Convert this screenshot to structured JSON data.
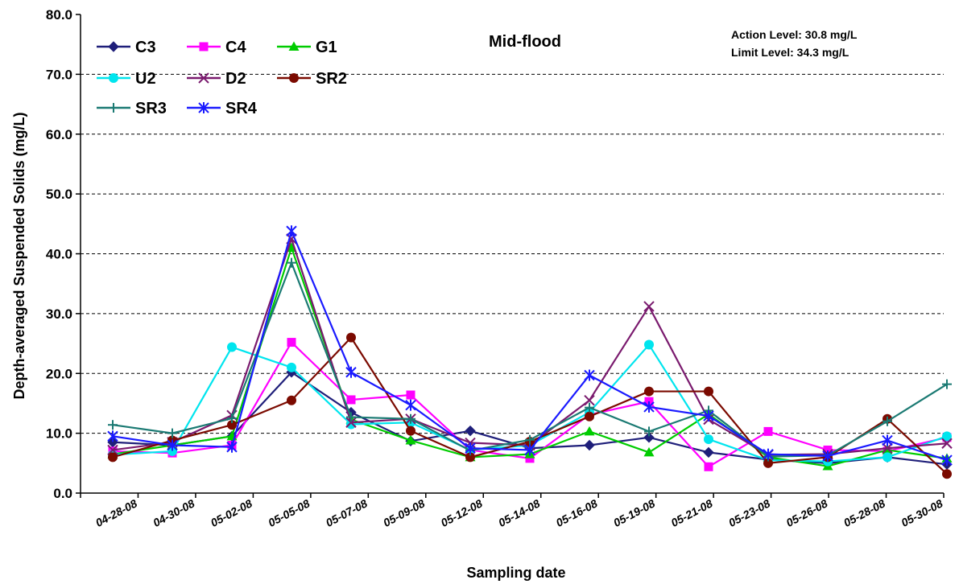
{
  "chart_data": {
    "type": "line",
    "xlabel": "Sampling date",
    "ylabel": "Depth-averaged Suspended Solids (mg/L)",
    "ylim": [
      0,
      80
    ],
    "yticks": [
      "0.0",
      "10.0",
      "20.0",
      "30.0",
      "40.0",
      "50.0",
      "60.0",
      "70.0",
      "80.0"
    ],
    "xtick_labels": [
      "04-28-08",
      "04-30-08",
      "05-02-08",
      "05-05-08",
      "05-07-08",
      "05-09-08",
      "05-12-08",
      "05-14-08",
      "05-16-08",
      "05-19-08",
      "05-21-08",
      "05-23-08",
      "05-26-08",
      "05-28-08",
      "05-30-08"
    ],
    "grid": "horizontal-dashed",
    "legend": "top-left",
    "annotations": {
      "title": "Mid-flood",
      "action_level": "Action Level: 30.8 mg/L",
      "limit_level": "Limit Level: 34.3 mg/L"
    },
    "series": [
      {
        "name": "C3",
        "color": "#1f1f7a",
        "marker": "diamond",
        "values": [
          8.5,
          8.0,
          9.5,
          20.2,
          13.5,
          8.7,
          10.4,
          7.5,
          8.0,
          9.3,
          6.8,
          5.6,
          5.0,
          6.0,
          4.8
        ]
      },
      {
        "name": "C4",
        "color": "#ff00ff",
        "marker": "square",
        "values": [
          7.0,
          6.7,
          8.0,
          25.2,
          15.6,
          16.4,
          7.2,
          5.8,
          13.1,
          15.3,
          4.4,
          10.3,
          7.2,
          7.0,
          9.3
        ]
      },
      {
        "name": "G1",
        "color": "#00cc00",
        "marker": "triangle",
        "values": [
          6.5,
          8.0,
          9.5,
          41.0,
          12.3,
          8.8,
          6.0,
          6.5,
          10.3,
          6.8,
          13.2,
          6.0,
          4.5,
          7.2,
          5.8
        ]
      },
      {
        "name": "U2",
        "color": "#00e5ee",
        "marker": "circle",
        "values": [
          6.4,
          7.0,
          24.4,
          21.0,
          11.5,
          11.8,
          7.2,
          8.0,
          13.5,
          24.8,
          9.0,
          5.5,
          5.3,
          6.0,
          9.5
        ]
      },
      {
        "name": "D2",
        "color": "#7a1a6e",
        "marker": "star",
        "values": [
          7.2,
          8.5,
          13.0,
          42.5,
          11.8,
          12.4,
          8.4,
          8.0,
          15.5,
          31.2,
          12.3,
          6.4,
          6.5,
          7.5,
          8.3
        ]
      },
      {
        "name": "SR2",
        "color": "#7b0a00",
        "marker": "circle",
        "values": [
          6.0,
          8.8,
          11.4,
          15.5,
          26.0,
          10.4,
          6.0,
          8.6,
          12.8,
          17.0,
          17.0,
          5.0,
          6.0,
          12.4,
          3.2
        ]
      },
      {
        "name": "SR3",
        "color": "#1b7a73",
        "marker": "plus",
        "values": [
          11.4,
          10.0,
          12.5,
          38.5,
          12.7,
          12.4,
          7.1,
          8.9,
          14.3,
          10.3,
          13.8,
          6.1,
          6.3,
          12.0,
          18.2
        ]
      },
      {
        "name": "SR4",
        "color": "#1a1aff",
        "marker": "asterisk",
        "values": [
          9.5,
          8.0,
          7.7,
          43.8,
          20.2,
          14.7,
          7.5,
          7.2,
          19.7,
          14.4,
          12.9,
          6.5,
          6.2,
          8.8,
          5.5
        ]
      }
    ]
  }
}
